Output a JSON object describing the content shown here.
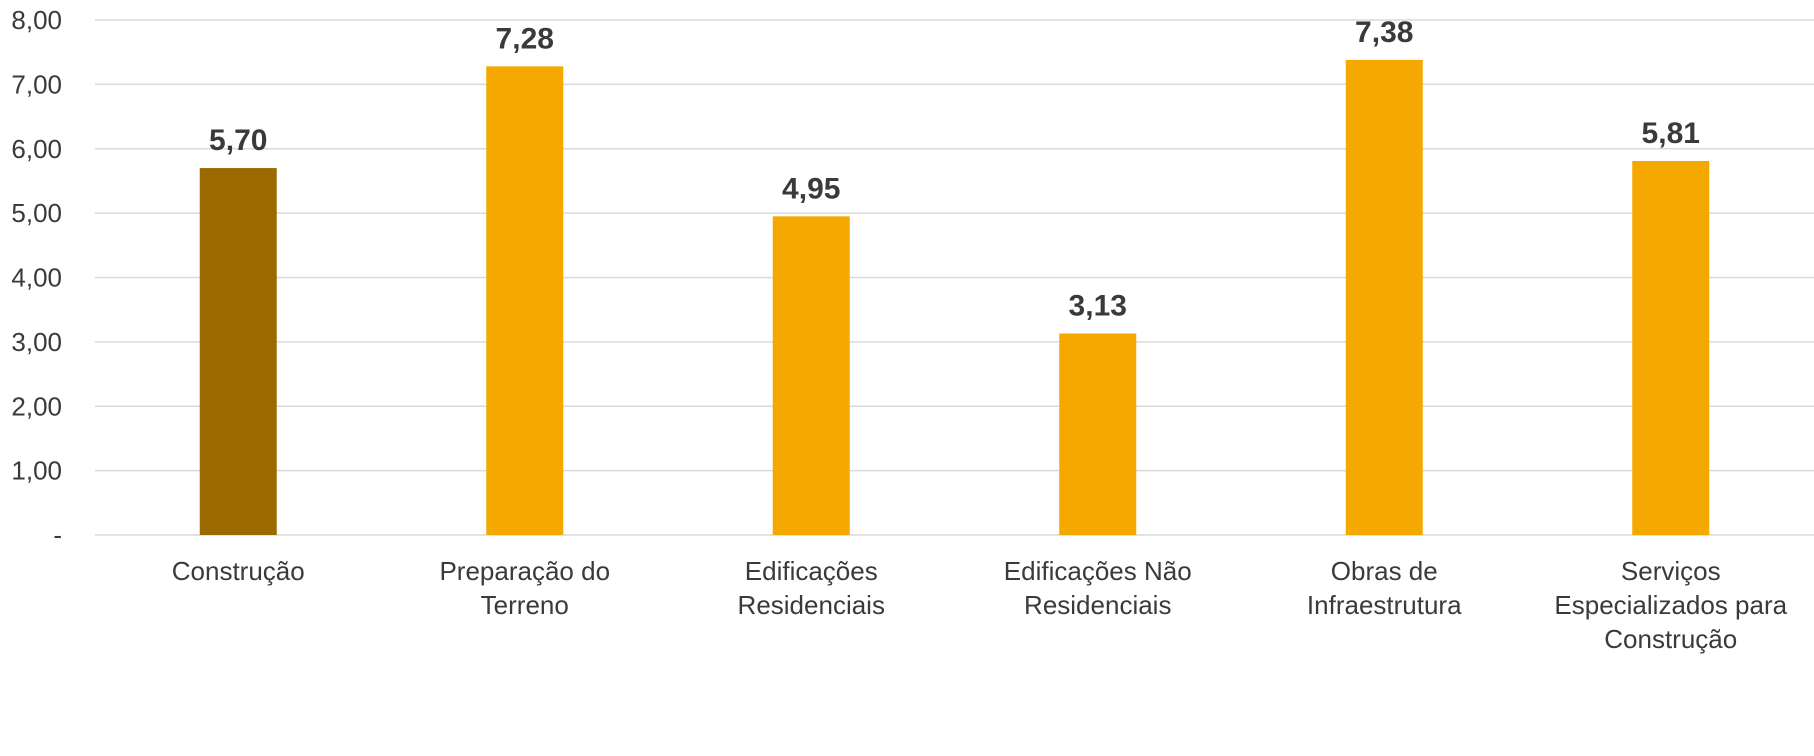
{
  "chart_data": {
    "type": "bar",
    "title": "",
    "xlabel": "",
    "ylabel": "",
    "ylim": [
      0,
      8
    ],
    "grid": true,
    "legend": "none",
    "y_ticks": [
      {
        "value": 0,
        "label": "-"
      },
      {
        "value": 1,
        "label": "1,00"
      },
      {
        "value": 2,
        "label": "2,00"
      },
      {
        "value": 3,
        "label": "3,00"
      },
      {
        "value": 4,
        "label": "4,00"
      },
      {
        "value": 5,
        "label": "5,00"
      },
      {
        "value": 6,
        "label": "6,00"
      },
      {
        "value": 7,
        "label": "7,00"
      },
      {
        "value": 8,
        "label": "8,00"
      }
    ],
    "categories": [
      [
        "Construção"
      ],
      [
        "Preparação do",
        "Terreno"
      ],
      [
        "Edificações",
        "Residenciais"
      ],
      [
        "Edificações Não",
        "Residenciais"
      ],
      [
        "Obras de",
        "Infraestrutura"
      ],
      [
        "Serviços",
        "Especializados para",
        "Construção"
      ]
    ],
    "values": [
      5.7,
      7.28,
      4.95,
      3.13,
      7.38,
      5.81
    ],
    "value_labels": [
      "5,70",
      "7,28",
      "4,95",
      "3,13",
      "7,38",
      "5,81"
    ],
    "bar_colors": [
      "#9a6a00",
      "#f5a800",
      "#f5a800",
      "#f5a800",
      "#f5a800",
      "#f5a800"
    ]
  }
}
